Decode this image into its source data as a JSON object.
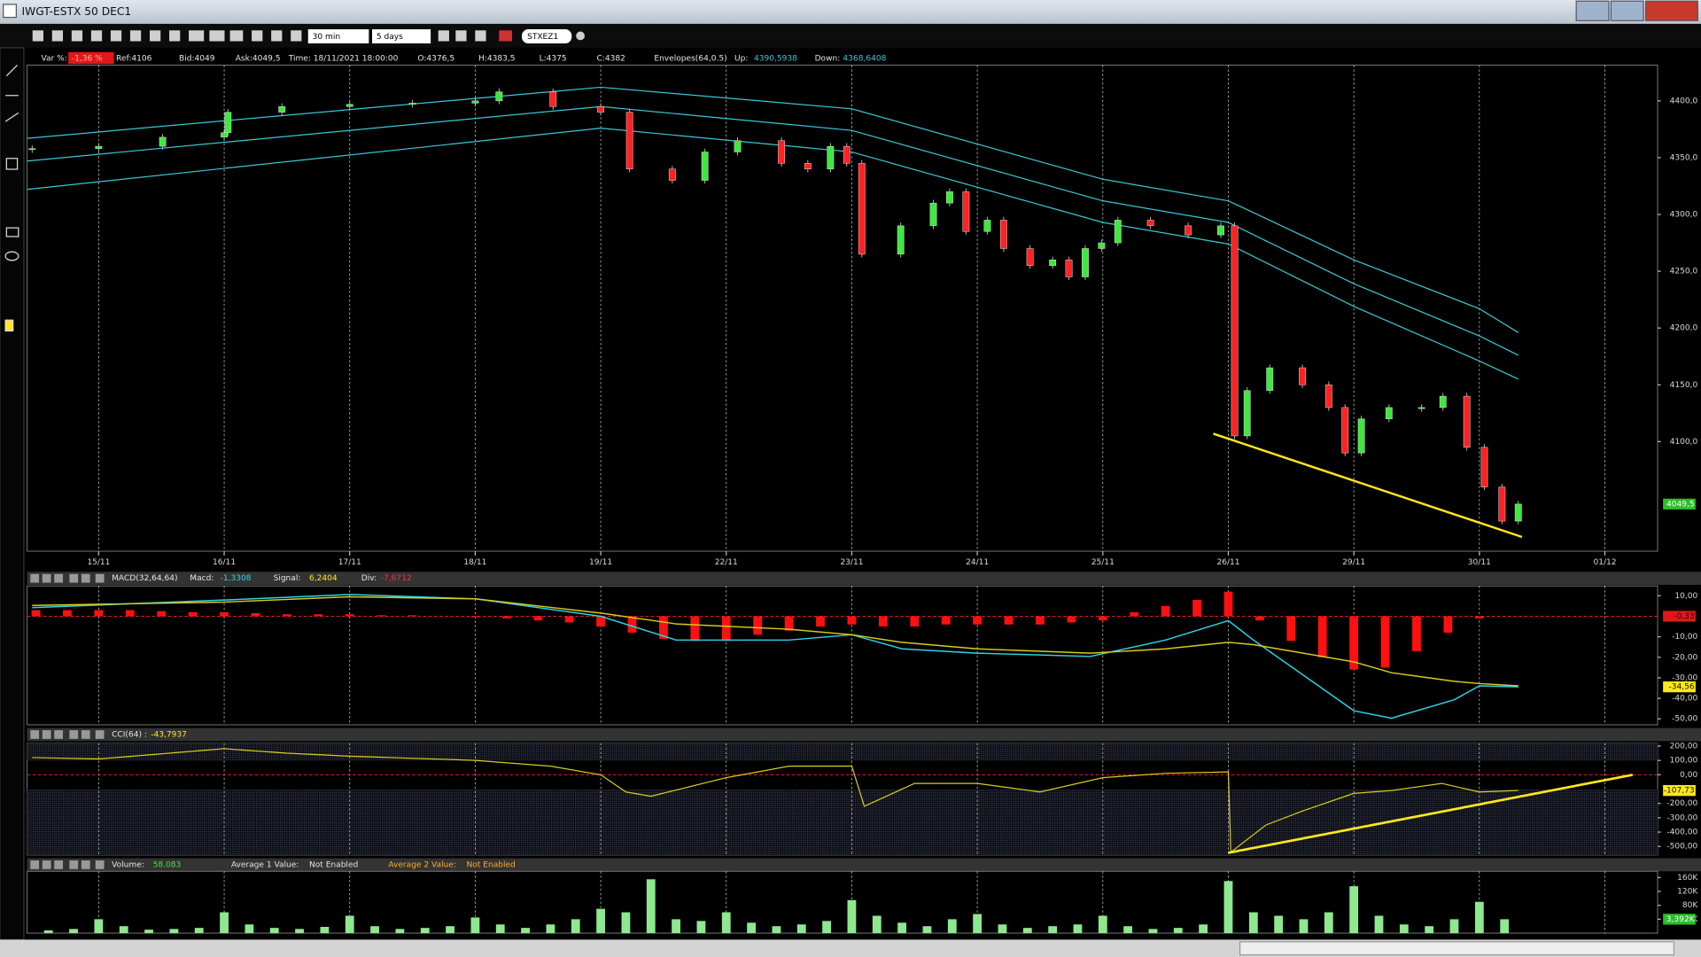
{
  "window": {
    "title": "IWGT-ESTX 50 DEC1"
  },
  "toolbar": {
    "interval": "30 min",
    "period": "5 days",
    "symbol": "STXEZ1"
  },
  "chart_data": [
    {
      "type": "candlestick",
      "info": {
        "var_label": "Var %:",
        "var_value": "-1,36 %",
        "ref": "Ref:4106",
        "bid": "Bid:4049",
        "ask": "Ask:4049,5",
        "time": "Time: 18/11/2021 18:00:00",
        "open": "O:4376,5",
        "high": "H:4383,5",
        "low": "L:4375",
        "close": "C:4382",
        "indicator": "Envelopes(64,0.5)",
        "up_label": "Up:",
        "up_value": "4390,5938",
        "down_label": "Down:",
        "down_value": "4368,6408"
      },
      "xlim": [
        -0.57,
        12.42
      ],
      "ylim": [
        4003.5,
        4431.5
      ],
      "xticks": [
        {
          "value": 0,
          "label": "15/11"
        },
        {
          "value": 1,
          "label": "16/11"
        },
        {
          "value": 2,
          "label": "17/11"
        },
        {
          "value": 3,
          "label": "18/11"
        },
        {
          "value": 4,
          "label": "19/11"
        },
        {
          "value": 5,
          "label": "22/11"
        },
        {
          "value": 6,
          "label": "23/11"
        },
        {
          "value": 7,
          "label": "24/11"
        },
        {
          "value": 8,
          "label": "25/11"
        },
        {
          "value": 9,
          "label": "26/11"
        },
        {
          "value": 10,
          "label": "29/11"
        },
        {
          "value": 11,
          "label": "30/11"
        },
        {
          "value": 12,
          "label": "01/12"
        }
      ],
      "yticks": [
        {
          "value": 4100,
          "label": "4100,0"
        },
        {
          "value": 4150,
          "label": "4150,0"
        },
        {
          "value": 4200,
          "label": "4200,0"
        },
        {
          "value": 4250,
          "label": "4250,0"
        },
        {
          "value": 4300,
          "label": "4300,0"
        },
        {
          "value": 4350,
          "label": "4350,0"
        },
        {
          "value": 4400,
          "label": "4400,0"
        }
      ],
      "x": [
        -0.53,
        0,
        0.51,
        1,
        1.03,
        1.46,
        2,
        2.5,
        3,
        3.19,
        3.62,
        4,
        4.23,
        4.57,
        4.83,
        5.09,
        5.44,
        5.65,
        5.83,
        5.96,
        6.08,
        6.39,
        6.65,
        6.78,
        6.91,
        7.08,
        7.21,
        7.42,
        7.6,
        7.73,
        7.86,
        7.99,
        8.12,
        8.38,
        8.68,
        8.94,
        9.05,
        9.15,
        9.33,
        9.59,
        9.8,
        9.93,
        10.06,
        10.28,
        10.54,
        10.71,
        10.9,
        11.04,
        11.18,
        11.31
      ],
      "values": [
        4358,
        4360,
        4368,
        4372,
        4390,
        4395,
        4397,
        4398,
        4400,
        4408,
        4395,
        4390,
        4340,
        4330,
        4355,
        4365,
        4345,
        4340,
        4360,
        4345,
        4265,
        4290,
        4310,
        4320,
        4285,
        4295,
        4270,
        4255,
        4260,
        4245,
        4270,
        4275,
        4295,
        4290,
        4282,
        4290,
        4105,
        4145,
        4165,
        4150,
        4130,
        4090,
        4120,
        4130,
        4130,
        4140,
        4095,
        4060,
        4030,
        4045
      ],
      "up_color": "#3ee83e",
      "down_color": "#ff2222",
      "envelope_x": [
        -0.57,
        4,
        6,
        8,
        9,
        10,
        11,
        11.31
      ],
      "envelopes": [
        {
          "values": [
            4367,
            4412,
            4393,
            4331,
            4312,
            4260,
            4217,
            4196
          ],
          "color": "#38c8d4"
        },
        {
          "values": [
            4347,
            4395,
            4374,
            4312,
            4293,
            4239,
            4193,
            4176
          ],
          "color": "#38c8d4"
        },
        {
          "values": [
            4322,
            4376,
            4355,
            4293,
            4274,
            4219,
            4171,
            4155
          ],
          "color": "#38c8d4"
        }
      ],
      "trendline": {
        "x": [
          8.88,
          11.34
        ],
        "values": [
          4107,
          4016
        ],
        "color": "#ffe81a"
      },
      "tag": "4049,5",
      "tag_color": "#27c027"
    },
    {
      "type": "macd",
      "info": {
        "indicator": "MACD(32,64,64)",
        "macd_label": "Macd:",
        "macd_value": "-1,3308",
        "signal_label": "Signal:",
        "signal_value": "6,2404",
        "div_label": "Div:",
        "div_value": "-7,6712"
      },
      "xlim": [
        -0.57,
        12.42
      ],
      "ylim": [
        -52.9,
        14.8
      ],
      "yticks": [
        {
          "value": -50,
          "label": "-50,00"
        },
        {
          "value": -40,
          "label": "-40,00"
        },
        {
          "value": -30,
          "label": "-30,00"
        },
        {
          "value": -20,
          "label": "-20,00"
        },
        {
          "value": -10,
          "label": "-10,00"
        },
        {
          "value": 10,
          "label": "10,00"
        }
      ],
      "zero_line": true,
      "x": [
        -0.53,
        1,
        2,
        3,
        4,
        4.6,
        5.5,
        6,
        6.4,
        7,
        7.9,
        8.5,
        9,
        9.2,
        10,
        10.3,
        10.8,
        11,
        11.31
      ],
      "series": [
        {
          "values": [
            4.2,
            7.9,
            10.6,
            8.5,
            0,
            -11.6,
            -11.6,
            -9,
            -15.9,
            -18,
            -19.6,
            -11.6,
            -2.1,
            -11.6,
            -46,
            -49.7,
            -40.7,
            -33.9,
            -34.4
          ],
          "color": "#2ed4e6"
        },
        {
          "values": [
            5.3,
            6.9,
            9.5,
            8.5,
            1.6,
            -3.7,
            -6.3,
            -9,
            -12.7,
            -15.9,
            -18,
            -15.9,
            -12.7,
            -13.8,
            -22.2,
            -27.5,
            -31.7,
            -32.8,
            -33.9
          ],
          "color": "#d8cc1c"
        }
      ],
      "histogram": {
        "x": [
          -0.5,
          -0.25,
          0,
          0.25,
          0.5,
          0.75,
          1,
          1.25,
          1.5,
          1.75,
          2,
          2.25,
          2.5,
          2.75,
          3,
          3.25,
          3.5,
          3.75,
          4,
          4.25,
          4.5,
          4.75,
          5,
          5.25,
          5.5,
          5.75,
          6,
          6.25,
          6.5,
          6.75,
          7,
          7.25,
          7.5,
          7.75,
          8,
          8.25,
          8.5,
          8.75,
          9,
          9.25,
          9.5,
          9.75,
          10,
          10.25,
          10.5,
          10.75,
          11,
          11.25
        ],
        "values": [
          3,
          3,
          3,
          3,
          2.5,
          2,
          2,
          1.5,
          1,
          1,
          1,
          0.5,
          0.5,
          0,
          -0.5,
          -1,
          -2,
          -3,
          -5,
          -8,
          -11,
          -12,
          -12,
          -9,
          -7,
          -5,
          -4,
          -5,
          -5,
          -4,
          -4,
          -4,
          -4,
          -3,
          -2,
          2,
          5,
          8,
          12,
          -2,
          -12,
          -20,
          -26,
          -25,
          -17,
          -8,
          -1,
          0
        ],
        "color": "#ff1010"
      },
      "hist_tag": "-0,33",
      "macd_tag": "-34,56"
    },
    {
      "type": "line",
      "info": {
        "indicator": "CCI(64) :",
        "value": "-43,7937"
      },
      "xlim": [
        -0.57,
        12.42
      ],
      "ylim": [
        -560,
        220
      ],
      "yticks": [
        {
          "value": -500,
          "label": "-500,00"
        },
        {
          "value": -400,
          "label": "-400,00"
        },
        {
          "value": -300,
          "label": "-300,00"
        },
        {
          "value": -200,
          "label": "-200,00"
        },
        {
          "value": 0,
          "label": "0,00"
        },
        {
          "value": 100,
          "label": "100,00"
        },
        {
          "value": 200,
          "label": "200,00"
        }
      ],
      "zero_line": true,
      "bands": [
        -100,
        100
      ],
      "x": [
        -0.53,
        0,
        1,
        1.5,
        2,
        3,
        3.6,
        4,
        4.2,
        4.4,
        5,
        5.5,
        6,
        6.1,
        6.5,
        7,
        7.5,
        8,
        8.5,
        9,
        9.02,
        9.3,
        9.6,
        10,
        10.3,
        10.7,
        11,
        11.31
      ],
      "values": [
        120,
        110,
        182,
        150,
        130,
        100,
        60,
        0,
        -120,
        -150,
        -20,
        60,
        60,
        -220,
        -60,
        -60,
        -120,
        -20,
        10,
        20,
        -540,
        -350,
        -250,
        -130,
        -110,
        -60,
        -120,
        -110
      ],
      "color": "#d8cc1c",
      "trendline": {
        "x": [
          9,
          12.22
        ],
        "values": [
          -545,
          0
        ],
        "color": "#ffe81a"
      },
      "tag": "-107,73",
      "tag_color": "#ffe81a"
    },
    {
      "type": "bar",
      "info": {
        "label": "Volume:",
        "value": "58.083",
        "avg1_label": "Average 1 Value:",
        "avg1_value": "Not Enabled",
        "avg2_label": "Average 2 Value:",
        "avg2_value": "Not Enabled"
      },
      "xlim": [
        -0.57,
        12.42
      ],
      "ylim": [
        0,
        178000
      ],
      "yticks": [
        {
          "value": 40000,
          "label": "40K"
        },
        {
          "value": 80000,
          "label": "80K"
        },
        {
          "value": 120000,
          "label": "120K"
        },
        {
          "value": 160000,
          "label": "160K"
        }
      ],
      "x": [
        -0.4,
        -0.2,
        0,
        0.2,
        0.4,
        0.6,
        0.8,
        1,
        1.2,
        1.4,
        1.6,
        1.8,
        2,
        2.2,
        2.4,
        2.6,
        2.8,
        3,
        3.2,
        3.4,
        3.6,
        3.8,
        4,
        4.2,
        4.4,
        4.6,
        4.8,
        5,
        5.2,
        5.4,
        5.6,
        5.8,
        6,
        6.2,
        6.4,
        6.6,
        6.8,
        7,
        7.2,
        7.4,
        7.6,
        7.8,
        8,
        8.2,
        8.4,
        8.6,
        8.8,
        9,
        9.2,
        9.4,
        9.6,
        9.8,
        10,
        10.2,
        10.4,
        10.6,
        10.8,
        11,
        11.2
      ],
      "values": [
        8000,
        12000,
        40000,
        20000,
        10000,
        12000,
        15000,
        60000,
        25000,
        15000,
        12000,
        18000,
        50000,
        20000,
        12000,
        15000,
        20000,
        45000,
        25000,
        15000,
        25000,
        40000,
        70000,
        60000,
        155000,
        40000,
        35000,
        60000,
        30000,
        20000,
        25000,
        35000,
        95000,
        50000,
        30000,
        20000,
        40000,
        55000,
        25000,
        15000,
        20000,
        25000,
        50000,
        20000,
        12000,
        15000,
        25000,
        150000,
        60000,
        50000,
        40000,
        60000,
        135000,
        50000,
        25000,
        20000,
        40000,
        90000,
        40000
      ],
      "color": "#8fe88f",
      "tag": "3,392K",
      "tag_color": "#27c027"
    }
  ]
}
